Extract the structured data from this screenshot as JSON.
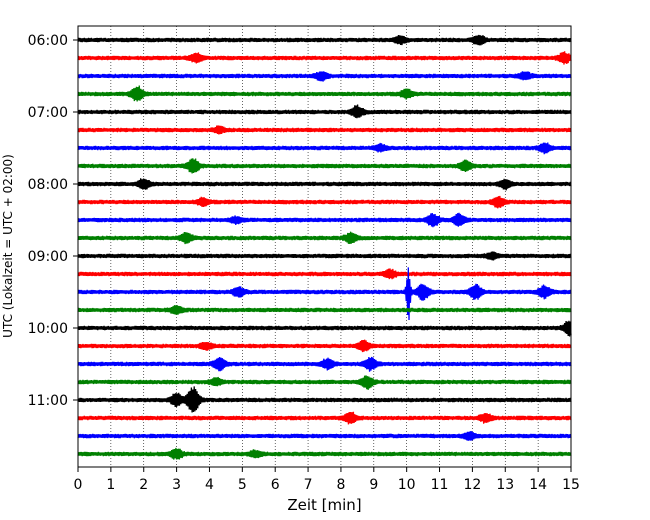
{
  "chart_data": {
    "type": "line",
    "title": "",
    "xlabel": "Zeit  [min]",
    "ylabel": "UTC (Lokalzeit = UTC + 02:00)",
    "xlim": [
      0,
      15
    ],
    "x_ticks": [
      0,
      1,
      2,
      3,
      4,
      5,
      6,
      7,
      8,
      9,
      10,
      11,
      12,
      13,
      14,
      15
    ],
    "x_tick_labels": [
      "0",
      "1",
      "2",
      "3",
      "4",
      "5",
      "6",
      "7",
      "8",
      "9",
      "10",
      "11",
      "12",
      "13",
      "14",
      "15"
    ],
    "y_ticks": [
      "06:00",
      "07:00",
      "08:00",
      "09:00",
      "10:00",
      "11:00"
    ],
    "grid": "vertical dotted",
    "row_interval_minutes": 15,
    "row_colors": [
      "#000000",
      "#ff0000",
      "#0000ff",
      "#008000"
    ],
    "rows": [
      {
        "start": "06:00",
        "color": "#000000",
        "events": [
          {
            "t": 9.8,
            "amp": 0.35
          },
          {
            "t": 12.2,
            "amp": 0.45
          }
        ]
      },
      {
        "start": "06:15",
        "color": "#ff0000",
        "events": [
          {
            "t": 3.6,
            "amp": 0.4
          },
          {
            "t": 14.8,
            "amp": 0.5
          }
        ]
      },
      {
        "start": "06:30",
        "color": "#0000ff",
        "events": [
          {
            "t": 7.4,
            "amp": 0.4
          },
          {
            "t": 13.6,
            "amp": 0.35
          }
        ]
      },
      {
        "start": "06:45",
        "color": "#008000",
        "events": [
          {
            "t": 1.8,
            "amp": 0.8
          },
          {
            "t": 10.0,
            "amp": 0.4
          }
        ]
      },
      {
        "start": "07:00",
        "color": "#000000",
        "events": [
          {
            "t": 8.5,
            "amp": 0.6
          }
        ]
      },
      {
        "start": "07:15",
        "color": "#ff0000",
        "events": [
          {
            "t": 4.3,
            "amp": 0.3
          }
        ]
      },
      {
        "start": "07:30",
        "color": "#0000ff",
        "events": [
          {
            "t": 14.2,
            "amp": 0.45
          },
          {
            "t": 9.2,
            "amp": 0.3
          }
        ]
      },
      {
        "start": "07:45",
        "color": "#008000",
        "events": [
          {
            "t": 3.5,
            "amp": 0.7
          },
          {
            "t": 11.8,
            "amp": 0.5
          }
        ]
      },
      {
        "start": "08:00",
        "color": "#000000",
        "events": [
          {
            "t": 2.0,
            "amp": 0.5
          },
          {
            "t": 13.0,
            "amp": 0.45
          }
        ]
      },
      {
        "start": "08:15",
        "color": "#ff0000",
        "events": [
          {
            "t": 3.8,
            "amp": 0.35
          },
          {
            "t": 12.8,
            "amp": 0.5
          }
        ]
      },
      {
        "start": "08:30",
        "color": "#0000ff",
        "events": [
          {
            "t": 10.8,
            "amp": 0.6
          },
          {
            "t": 11.6,
            "amp": 0.6
          },
          {
            "t": 4.8,
            "amp": 0.3
          }
        ]
      },
      {
        "start": "08:45",
        "color": "#008000",
        "events": [
          {
            "t": 3.3,
            "amp": 0.5
          },
          {
            "t": 8.3,
            "amp": 0.5
          }
        ]
      },
      {
        "start": "09:00",
        "color": "#000000",
        "events": [
          {
            "t": 12.6,
            "amp": 0.3
          }
        ]
      },
      {
        "start": "09:15",
        "color": "#ff0000",
        "events": [
          {
            "t": 9.5,
            "amp": 0.4
          }
        ]
      },
      {
        "start": "09:30",
        "color": "#0000ff",
        "events": [
          {
            "t": 10.05,
            "amp": 3.0
          },
          {
            "t": 10.5,
            "amp": 0.8
          },
          {
            "t": 12.1,
            "amp": 0.7
          },
          {
            "t": 14.2,
            "amp": 0.6
          },
          {
            "t": 4.9,
            "amp": 0.5
          }
        ]
      },
      {
        "start": "09:45",
        "color": "#008000",
        "events": [
          {
            "t": 3.0,
            "amp": 0.35
          }
        ]
      },
      {
        "start": "10:00",
        "color": "#000000",
        "events": [
          {
            "t": 14.95,
            "amp": 0.7
          }
        ]
      },
      {
        "start": "10:15",
        "color": "#ff0000",
        "events": [
          {
            "t": 8.7,
            "amp": 0.5
          },
          {
            "t": 3.9,
            "amp": 0.3
          }
        ]
      },
      {
        "start": "10:30",
        "color": "#0000ff",
        "events": [
          {
            "t": 4.3,
            "amp": 0.6
          },
          {
            "t": 7.6,
            "amp": 0.5
          },
          {
            "t": 8.9,
            "amp": 0.6
          }
        ]
      },
      {
        "start": "10:45",
        "color": "#008000",
        "events": [
          {
            "t": 8.8,
            "amp": 0.6
          },
          {
            "t": 4.2,
            "amp": 0.35
          }
        ]
      },
      {
        "start": "11:00",
        "color": "#000000",
        "events": [
          {
            "t": 3.5,
            "amp": 1.3
          },
          {
            "t": 3.0,
            "amp": 0.6
          }
        ]
      },
      {
        "start": "11:15",
        "color": "#ff0000",
        "events": [
          {
            "t": 8.3,
            "amp": 0.55
          },
          {
            "t": 12.4,
            "amp": 0.4
          }
        ]
      },
      {
        "start": "11:30",
        "color": "#0000ff",
        "events": [
          {
            "t": 11.9,
            "amp": 0.35
          }
        ]
      },
      {
        "start": "11:45",
        "color": "#008000",
        "events": [
          {
            "t": 3.0,
            "amp": 0.5
          },
          {
            "t": 5.4,
            "amp": 0.3
          }
        ]
      }
    ]
  }
}
